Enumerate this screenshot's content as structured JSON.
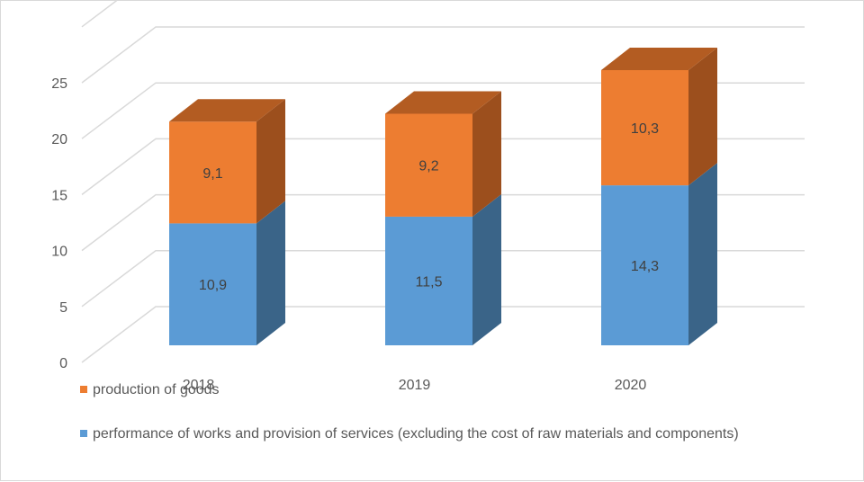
{
  "chart_data": {
    "type": "bar",
    "subtype": "stacked-3d-column",
    "title": "",
    "xlabel": "",
    "ylabel": "",
    "categories": [
      "2018",
      "2019",
      "2020"
    ],
    "series": [
      {
        "name": "performance of works and provision of services (excluding the cost of raw materials and components)",
        "values": [
          10.9,
          11.5,
          14.3
        ],
        "labels": [
          "10,9",
          "11,5",
          "14,3"
        ],
        "color": "#5b9bd5",
        "side_color": "#3a6488",
        "top_color": "#4a84b8"
      },
      {
        "name": "production of goods",
        "values": [
          9.1,
          9.2,
          10.3
        ],
        "labels": [
          "9,1",
          "9,2",
          "10,3"
        ],
        "color": "#ed7d31",
        "side_color": "#9c4f1d",
        "top_color": "#b35c22"
      }
    ],
    "ylim": [
      0,
      30
    ],
    "yticks": [
      0,
      5,
      10,
      15,
      20,
      25
    ],
    "grid": true,
    "legend": {
      "position": "bottom-left",
      "entries": [
        {
          "name": "production of goods",
          "color": "#ed7d31"
        },
        {
          "name": "performance of works and provision of services (excluding the cost of raw materials and components)",
          "color": "#5b9bd5"
        }
      ]
    }
  }
}
